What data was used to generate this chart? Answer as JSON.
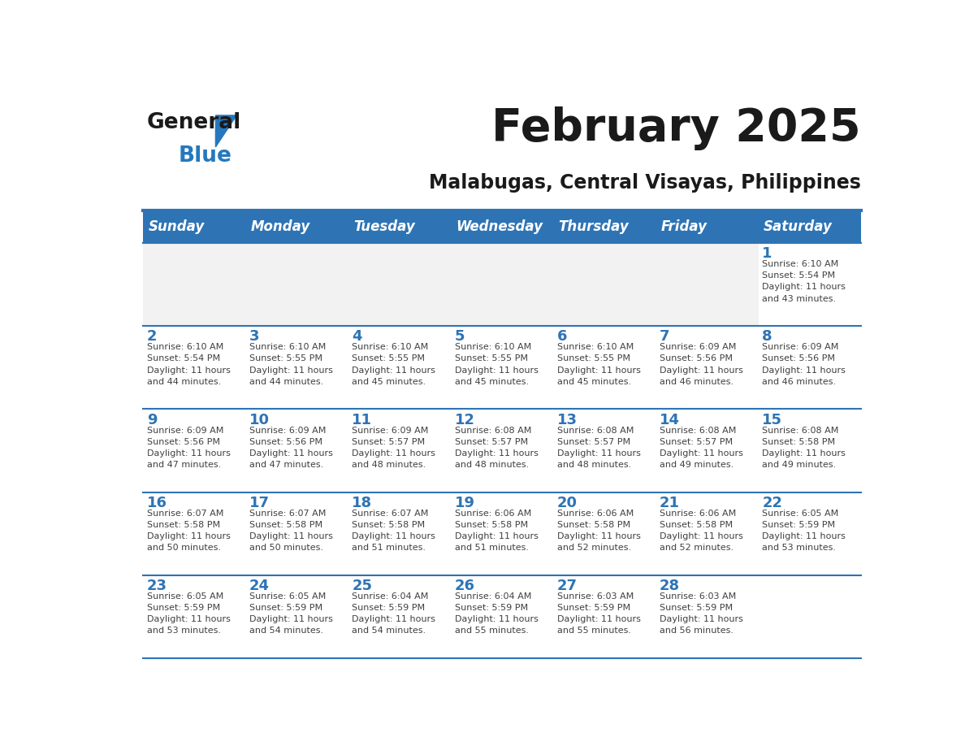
{
  "title": "February 2025",
  "subtitle": "Malabugas, Central Visayas, Philippines",
  "days_of_week": [
    "Sunday",
    "Monday",
    "Tuesday",
    "Wednesday",
    "Thursday",
    "Friday",
    "Saturday"
  ],
  "header_bg": "#2E74B5",
  "header_text": "#FFFFFF",
  "cell_bg_light": "#FFFFFF",
  "cell_bg_gray": "#F2F2F2",
  "divider_color": "#2E74B5",
  "day_num_color": "#2E74B5",
  "cell_text_color": "#404040",
  "title_color": "#1a1a1a",
  "subtitle_color": "#1a1a1a",
  "logo_general_color": "#1a1a1a",
  "logo_blue_color": "#2578BE",
  "logo_triangle_color": "#2578BE",
  "calendar": [
    [
      {
        "day": null,
        "sunrise": null,
        "sunset": null,
        "daylight": null
      },
      {
        "day": null,
        "sunrise": null,
        "sunset": null,
        "daylight": null
      },
      {
        "day": null,
        "sunrise": null,
        "sunset": null,
        "daylight": null
      },
      {
        "day": null,
        "sunrise": null,
        "sunset": null,
        "daylight": null
      },
      {
        "day": null,
        "sunrise": null,
        "sunset": null,
        "daylight": null
      },
      {
        "day": null,
        "sunrise": null,
        "sunset": null,
        "daylight": null
      },
      {
        "day": 1,
        "sunrise": "6:10 AM",
        "sunset": "5:54 PM",
        "daylight": "11 hours and 43 minutes."
      }
    ],
    [
      {
        "day": 2,
        "sunrise": "6:10 AM",
        "sunset": "5:54 PM",
        "daylight": "11 hours and 44 minutes."
      },
      {
        "day": 3,
        "sunrise": "6:10 AM",
        "sunset": "5:55 PM",
        "daylight": "11 hours and 44 minutes."
      },
      {
        "day": 4,
        "sunrise": "6:10 AM",
        "sunset": "5:55 PM",
        "daylight": "11 hours and 45 minutes."
      },
      {
        "day": 5,
        "sunrise": "6:10 AM",
        "sunset": "5:55 PM",
        "daylight": "11 hours and 45 minutes."
      },
      {
        "day": 6,
        "sunrise": "6:10 AM",
        "sunset": "5:55 PM",
        "daylight": "11 hours and 45 minutes."
      },
      {
        "day": 7,
        "sunrise": "6:09 AM",
        "sunset": "5:56 PM",
        "daylight": "11 hours and 46 minutes."
      },
      {
        "day": 8,
        "sunrise": "6:09 AM",
        "sunset": "5:56 PM",
        "daylight": "11 hours and 46 minutes."
      }
    ],
    [
      {
        "day": 9,
        "sunrise": "6:09 AM",
        "sunset": "5:56 PM",
        "daylight": "11 hours and 47 minutes."
      },
      {
        "day": 10,
        "sunrise": "6:09 AM",
        "sunset": "5:56 PM",
        "daylight": "11 hours and 47 minutes."
      },
      {
        "day": 11,
        "sunrise": "6:09 AM",
        "sunset": "5:57 PM",
        "daylight": "11 hours and 48 minutes."
      },
      {
        "day": 12,
        "sunrise": "6:08 AM",
        "sunset": "5:57 PM",
        "daylight": "11 hours and 48 minutes."
      },
      {
        "day": 13,
        "sunrise": "6:08 AM",
        "sunset": "5:57 PM",
        "daylight": "11 hours and 48 minutes."
      },
      {
        "day": 14,
        "sunrise": "6:08 AM",
        "sunset": "5:57 PM",
        "daylight": "11 hours and 49 minutes."
      },
      {
        "day": 15,
        "sunrise": "6:08 AM",
        "sunset": "5:58 PM",
        "daylight": "11 hours and 49 minutes."
      }
    ],
    [
      {
        "day": 16,
        "sunrise": "6:07 AM",
        "sunset": "5:58 PM",
        "daylight": "11 hours and 50 minutes."
      },
      {
        "day": 17,
        "sunrise": "6:07 AM",
        "sunset": "5:58 PM",
        "daylight": "11 hours and 50 minutes."
      },
      {
        "day": 18,
        "sunrise": "6:07 AM",
        "sunset": "5:58 PM",
        "daylight": "11 hours and 51 minutes."
      },
      {
        "day": 19,
        "sunrise": "6:06 AM",
        "sunset": "5:58 PM",
        "daylight": "11 hours and 51 minutes."
      },
      {
        "day": 20,
        "sunrise": "6:06 AM",
        "sunset": "5:58 PM",
        "daylight": "11 hours and 52 minutes."
      },
      {
        "day": 21,
        "sunrise": "6:06 AM",
        "sunset": "5:58 PM",
        "daylight": "11 hours and 52 minutes."
      },
      {
        "day": 22,
        "sunrise": "6:05 AM",
        "sunset": "5:59 PM",
        "daylight": "11 hours and 53 minutes."
      }
    ],
    [
      {
        "day": 23,
        "sunrise": "6:05 AM",
        "sunset": "5:59 PM",
        "daylight": "11 hours and 53 minutes."
      },
      {
        "day": 24,
        "sunrise": "6:05 AM",
        "sunset": "5:59 PM",
        "daylight": "11 hours and 54 minutes."
      },
      {
        "day": 25,
        "sunrise": "6:04 AM",
        "sunset": "5:59 PM",
        "daylight": "11 hours and 54 minutes."
      },
      {
        "day": 26,
        "sunrise": "6:04 AM",
        "sunset": "5:59 PM",
        "daylight": "11 hours and 55 minutes."
      },
      {
        "day": 27,
        "sunrise": "6:03 AM",
        "sunset": "5:59 PM",
        "daylight": "11 hours and 55 minutes."
      },
      {
        "day": 28,
        "sunrise": "6:03 AM",
        "sunset": "5:59 PM",
        "daylight": "11 hours and 56 minutes."
      },
      {
        "day": null,
        "sunrise": null,
        "sunset": null,
        "daylight": null
      }
    ]
  ]
}
